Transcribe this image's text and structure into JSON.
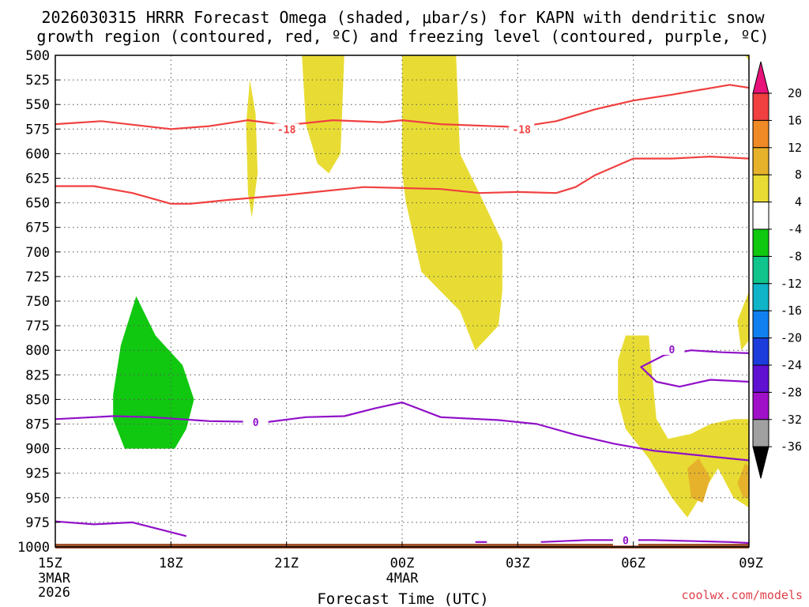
{
  "chart_data": {
    "type": "time-height cross-section",
    "title_line1": "2026030315 HRRR Forecast Omega (shaded, μbar/s) for KAPN with dendritic snow",
    "title_line2": "growth region (contoured, red, ºC) and freezing level (contoured, purple, ºC)",
    "xlabel": "Forecast Time (UTC)",
    "credit": "coolwx.com/models",
    "x_range_hours": [
      0,
      18
    ],
    "y_range_mb": [
      500,
      1000
    ],
    "y_ticks": [
      500,
      525,
      550,
      575,
      600,
      625,
      650,
      675,
      700,
      725,
      750,
      775,
      800,
      825,
      850,
      875,
      900,
      925,
      950,
      975,
      1000
    ],
    "x_ticks": [
      {
        "hour": 0,
        "label": "15Z",
        "sub1": "3MAR",
        "sub2": "2026"
      },
      {
        "hour": 3,
        "label": "18Z",
        "sub1": "",
        "sub2": ""
      },
      {
        "hour": 6,
        "label": "21Z",
        "sub1": "",
        "sub2": ""
      },
      {
        "hour": 9,
        "label": "00Z",
        "sub1": "4MAR",
        "sub2": ""
      },
      {
        "hour": 12,
        "label": "03Z",
        "sub1": "",
        "sub2": ""
      },
      {
        "hour": 15,
        "label": "06Z",
        "sub1": "",
        "sub2": ""
      },
      {
        "hour": 18,
        "label": "09Z",
        "sub1": "",
        "sub2": ""
      }
    ],
    "colorbar": {
      "labels": [
        20,
        16,
        12,
        8,
        4,
        -4,
        -8,
        -12,
        -16,
        -20,
        -24,
        -28,
        -32,
        -36
      ],
      "colors": [
        "#e8127a",
        "#f04040",
        "#f08a26",
        "#e6b22c",
        "#e8dc34",
        "#ffffff",
        "#10c810",
        "#10c48c",
        "#10b4c8",
        "#1080f0",
        "#1c3cdc",
        "#6010d0",
        "#a010c8",
        "#a0a0a0",
        "#000000"
      ]
    },
    "omega_regions": [
      {
        "name": "omega-positive-column-1",
        "color": "#e8dc34",
        "value": "4-8",
        "points": [
          [
            4.95,
            570
          ],
          [
            5.05,
            525
          ],
          [
            5.2,
            560
          ],
          [
            5.25,
            620
          ],
          [
            5.1,
            665
          ],
          [
            5.0,
            640
          ]
        ]
      },
      {
        "name": "omega-positive-column-2",
        "color": "#e8dc34",
        "value": "4-8",
        "points": [
          [
            6.4,
            500
          ],
          [
            7.5,
            500
          ],
          [
            7.4,
            600
          ],
          [
            7.1,
            620
          ],
          [
            6.8,
            610
          ],
          [
            6.5,
            570
          ]
        ]
      },
      {
        "name": "omega-positive-column-3",
        "color": "#e8dc34",
        "value": "4-8",
        "points": [
          [
            9.0,
            500
          ],
          [
            10.4,
            500
          ],
          [
            10.5,
            600
          ],
          [
            11.0,
            640
          ],
          [
            11.6,
            690
          ],
          [
            11.6,
            740
          ],
          [
            11.5,
            775
          ],
          [
            10.9,
            800
          ],
          [
            10.5,
            760
          ],
          [
            9.5,
            720
          ],
          [
            9.1,
            650
          ],
          [
            9.0,
            620
          ]
        ]
      },
      {
        "name": "omega-positive-low-region",
        "color": "#e8dc34",
        "value": "4-8",
        "points": [
          [
            14.8,
            785
          ],
          [
            15.4,
            785
          ],
          [
            15.5,
            830
          ],
          [
            15.6,
            870
          ],
          [
            15.9,
            890
          ],
          [
            16.5,
            885
          ],
          [
            17.0,
            875
          ],
          [
            17.6,
            870
          ],
          [
            18.0,
            870
          ],
          [
            18.0,
            960
          ],
          [
            17.6,
            950
          ],
          [
            17.2,
            920
          ],
          [
            16.8,
            945
          ],
          [
            16.4,
            970
          ],
          [
            16.0,
            950
          ],
          [
            15.4,
            910
          ],
          [
            14.8,
            880
          ],
          [
            14.6,
            850
          ],
          [
            14.6,
            810
          ]
        ]
      },
      {
        "name": "omega-positive-right-edge",
        "color": "#e8dc34",
        "value": "4-8",
        "points": [
          [
            17.7,
            770
          ],
          [
            18.0,
            740
          ],
          [
            18.0,
            790
          ],
          [
            17.8,
            800
          ]
        ]
      },
      {
        "name": "omega-positive-top-corner",
        "color": "#e8dc34",
        "value": "4-8",
        "points": [
          [
            17.9,
            500
          ],
          [
            18.0,
            500
          ],
          [
            18.0,
            505
          ]
        ]
      },
      {
        "name": "omega-max-1",
        "color": "#e6b22c",
        "value": "8-12",
        "points": [
          [
            16.4,
            920
          ],
          [
            16.7,
            910
          ],
          [
            17.0,
            930
          ],
          [
            16.8,
            955
          ],
          [
            16.5,
            950
          ]
        ]
      },
      {
        "name": "omega-max-2",
        "color": "#e6b22c",
        "value": "8-12",
        "points": [
          [
            17.7,
            935
          ],
          [
            17.9,
            915
          ],
          [
            18.0,
            918
          ],
          [
            18.0,
            950
          ],
          [
            17.85,
            950
          ]
        ]
      },
      {
        "name": "omega-negative-region",
        "color": "#10c810",
        "value": "-8 to -4",
        "points": [
          [
            1.5,
            845
          ],
          [
            1.7,
            795
          ],
          [
            2.1,
            745
          ],
          [
            2.6,
            785
          ],
          [
            3.3,
            815
          ],
          [
            3.6,
            850
          ],
          [
            3.4,
            880
          ],
          [
            3.1,
            900
          ],
          [
            1.8,
            900
          ],
          [
            1.5,
            870
          ]
        ]
      }
    ],
    "dgz_contours": [
      {
        "name": "dgz-minus18-line",
        "label": "-18",
        "label_points": [
          [
            6.0,
            575
          ],
          [
            12.1,
            575
          ]
        ],
        "points": [
          [
            0,
            570
          ],
          [
            1.2,
            567
          ],
          [
            3.0,
            575
          ],
          [
            4.0,
            572
          ],
          [
            5.0,
            566
          ],
          [
            6.0,
            571
          ],
          [
            7.2,
            566
          ],
          [
            8.5,
            568
          ],
          [
            9.0,
            566
          ],
          [
            10.0,
            570
          ],
          [
            12.0,
            573
          ],
          [
            13.0,
            567
          ],
          [
            14.0,
            555
          ],
          [
            15.0,
            546
          ],
          [
            16.0,
            540
          ],
          [
            17.5,
            530
          ],
          [
            18.0,
            533
          ]
        ]
      },
      {
        "name": "dgz-minus12-line",
        "label": "",
        "label_points": [],
        "points": [
          [
            0,
            633
          ],
          [
            1.0,
            633
          ],
          [
            2.0,
            640
          ],
          [
            3.0,
            651
          ],
          [
            3.5,
            651
          ],
          [
            4.5,
            647
          ],
          [
            6.0,
            642
          ],
          [
            8.0,
            634
          ],
          [
            9.0,
            635
          ],
          [
            10.0,
            636
          ],
          [
            11.0,
            640
          ],
          [
            12.0,
            639
          ],
          [
            13.0,
            640
          ],
          [
            13.5,
            634
          ],
          [
            14.0,
            622
          ],
          [
            15.0,
            605
          ],
          [
            16.0,
            605
          ],
          [
            17.0,
            603
          ],
          [
            18.0,
            605
          ]
        ]
      }
    ],
    "freezing_contours": [
      {
        "name": "freezing-level-main",
        "label": "0",
        "label_points": [
          [
            5.2,
            873
          ]
        ],
        "points": [
          [
            0,
            870
          ],
          [
            1.5,
            867
          ],
          [
            2.5,
            868
          ],
          [
            4.0,
            872
          ],
          [
            5.5,
            873
          ],
          [
            6.5,
            868
          ],
          [
            7.5,
            867
          ],
          [
            8.3,
            859
          ],
          [
            9.0,
            853
          ],
          [
            10.0,
            868
          ],
          [
            11.5,
            871
          ],
          [
            12.5,
            875
          ],
          [
            13.5,
            886
          ],
          [
            14.5,
            895
          ],
          [
            15.5,
            902
          ],
          [
            17.0,
            908
          ],
          [
            18.0,
            912
          ]
        ]
      },
      {
        "name": "freezing-level-upper-loop",
        "label": "0",
        "label_points": [
          [
            16.0,
            799
          ]
        ],
        "points": [
          [
            18.0,
            803
          ],
          [
            17.3,
            802
          ],
          [
            16.5,
            800
          ],
          [
            15.8,
            805
          ],
          [
            15.2,
            817
          ],
          [
            15.6,
            832
          ],
          [
            16.2,
            837
          ],
          [
            17.0,
            830
          ],
          [
            18.0,
            832
          ]
        ]
      },
      {
        "name": "freezing-level-near-surface-west",
        "label": "",
        "label_points": [],
        "points": [
          [
            0,
            974
          ],
          [
            1.0,
            977
          ],
          [
            2.0,
            975
          ],
          [
            3.0,
            985
          ],
          [
            3.4,
            989
          ]
        ]
      },
      {
        "name": "freezing-level-near-surface-east",
        "label": "0",
        "label_points": [
          [
            14.8,
            993
          ]
        ],
        "points": [
          [
            12.6,
            995
          ],
          [
            13.8,
            993
          ],
          [
            15.5,
            993
          ],
          [
            17.5,
            995
          ],
          [
            18.0,
            996
          ]
        ]
      },
      {
        "name": "freezing-level-near-surface-dash",
        "label": "",
        "label_points": [],
        "points": [
          [
            10.9,
            995
          ],
          [
            11.2,
            995
          ]
        ]
      }
    ]
  }
}
